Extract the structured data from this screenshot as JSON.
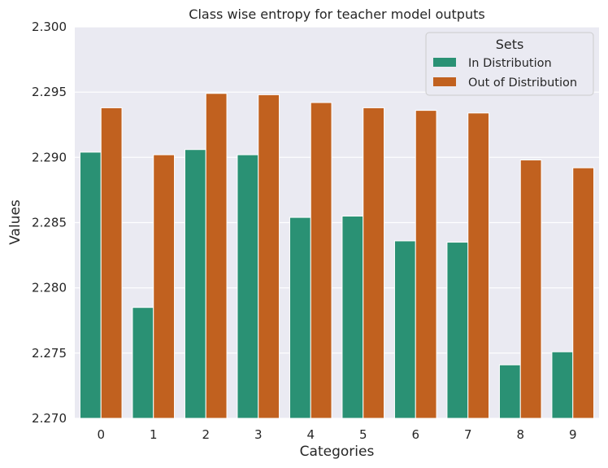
{
  "chart_data": {
    "type": "bar",
    "title": "Class wise entropy for teacher model outputs",
    "xlabel": "Categories",
    "ylabel": "Values",
    "categories": [
      "0",
      "1",
      "2",
      "3",
      "4",
      "5",
      "6",
      "7",
      "8",
      "9"
    ],
    "ylim": [
      2.27,
      2.3
    ],
    "yticks": [
      "2.270",
      "2.275",
      "2.280",
      "2.285",
      "2.290",
      "2.295",
      "2.300"
    ],
    "grid": true,
    "legend": {
      "title": "Sets",
      "placement": "top-right"
    },
    "series": [
      {
        "name": "In Distribution",
        "color": "#2a9174",
        "values": [
          2.2904,
          2.2785,
          2.2906,
          2.2902,
          2.2854,
          2.2855,
          2.2836,
          2.2835,
          2.2741,
          2.2751
        ]
      },
      {
        "name": "Out of Distribution",
        "color": "#c1611f",
        "values": [
          2.2938,
          2.2902,
          2.2949,
          2.2948,
          2.2942,
          2.2938,
          2.2936,
          2.2934,
          2.2898,
          2.2892
        ]
      }
    ]
  }
}
